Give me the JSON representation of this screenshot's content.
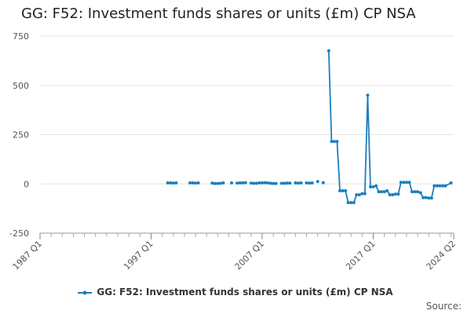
{
  "chart_data": {
    "type": "line",
    "title": "GG: F52: Investment funds shares or units (£m) CP NSA",
    "xlabel": "",
    "ylabel": "",
    "ylim": [
      -250,
      750
    ],
    "y_ticks": [
      -250,
      0,
      250,
      500,
      750
    ],
    "x_ticks": [
      "1987 Q1",
      "1997 Q1",
      "2007 Q1",
      "2017 Q1",
      "2024 Q2"
    ],
    "x_range": [
      "1987 Q1",
      "2024 Q2"
    ],
    "grid": true,
    "legend_position": "bottom",
    "series": [
      {
        "name": "GG: F52: Investment funds shares or units (£m) CP NSA",
        "color": "#1a7fbf",
        "x": [
          "1998 Q3",
          "1998 Q4",
          "1999 Q1",
          "1999 Q2",
          "2000 Q3",
          "2000 Q4",
          "2001 Q1",
          "2001 Q2",
          "2002 Q3",
          "2002 Q4",
          "2003 Q1",
          "2003 Q2",
          "2003 Q3",
          "2004 Q2",
          "2004 Q4",
          "2005 Q1",
          "2005 Q2",
          "2005 Q3",
          "2006 Q1",
          "2006 Q2",
          "2006 Q3",
          "2006 Q4",
          "2007 Q1",
          "2007 Q2",
          "2007 Q3",
          "2007 Q4",
          "2008 Q1",
          "2008 Q2",
          "2008 Q4",
          "2009 Q1",
          "2009 Q2",
          "2009 Q3",
          "2010 Q1",
          "2010 Q2",
          "2010 Q3",
          "2011 Q1",
          "2011 Q2",
          "2011 Q3",
          "2012 Q1",
          "2012 Q3",
          "2013 Q1",
          "2013 Q2",
          "2013 Q3",
          "2013 Q4",
          "2014 Q1",
          "2014 Q2",
          "2014 Q3",
          "2014 Q4",
          "2015 Q1",
          "2015 Q2",
          "2015 Q3",
          "2015 Q4",
          "2016 Q1",
          "2016 Q2",
          "2016 Q3",
          "2016 Q4",
          "2017 Q1",
          "2017 Q2",
          "2017 Q3",
          "2017 Q4",
          "2018 Q1",
          "2018 Q2",
          "2018 Q3",
          "2018 Q4",
          "2019 Q1",
          "2019 Q2",
          "2019 Q3",
          "2019 Q4",
          "2020 Q1",
          "2020 Q2",
          "2020 Q3",
          "2020 Q4",
          "2021 Q1",
          "2021 Q2",
          "2021 Q3",
          "2021 Q4",
          "2022 Q1",
          "2022 Q2",
          "2022 Q3",
          "2022 Q4",
          "2023 Q1",
          "2023 Q2",
          "2023 Q3",
          "2024 Q1"
        ],
        "values": [
          5,
          5,
          4,
          5,
          5,
          5,
          4,
          5,
          4,
          2,
          2,
          3,
          5,
          5,
          4,
          5,
          5,
          6,
          4,
          3,
          3,
          5,
          5,
          6,
          5,
          3,
          2,
          2,
          3,
          3,
          4,
          4,
          5,
          4,
          5,
          5,
          4,
          5,
          12,
          6,
          675,
          215,
          215,
          215,
          -35,
          -35,
          -35,
          -95,
          -95,
          -95,
          -55,
          -55,
          -50,
          -50,
          450,
          -15,
          -15,
          -10,
          -40,
          -40,
          -40,
          -35,
          -55,
          -55,
          -52,
          -52,
          8,
          8,
          8,
          8,
          -40,
          -40,
          -40,
          -45,
          -70,
          -70,
          -72,
          -72,
          -10,
          -10,
          -10,
          -10,
          -10,
          5
        ],
        "connect_from_index": 40
      }
    ]
  },
  "source_label": "Source:"
}
